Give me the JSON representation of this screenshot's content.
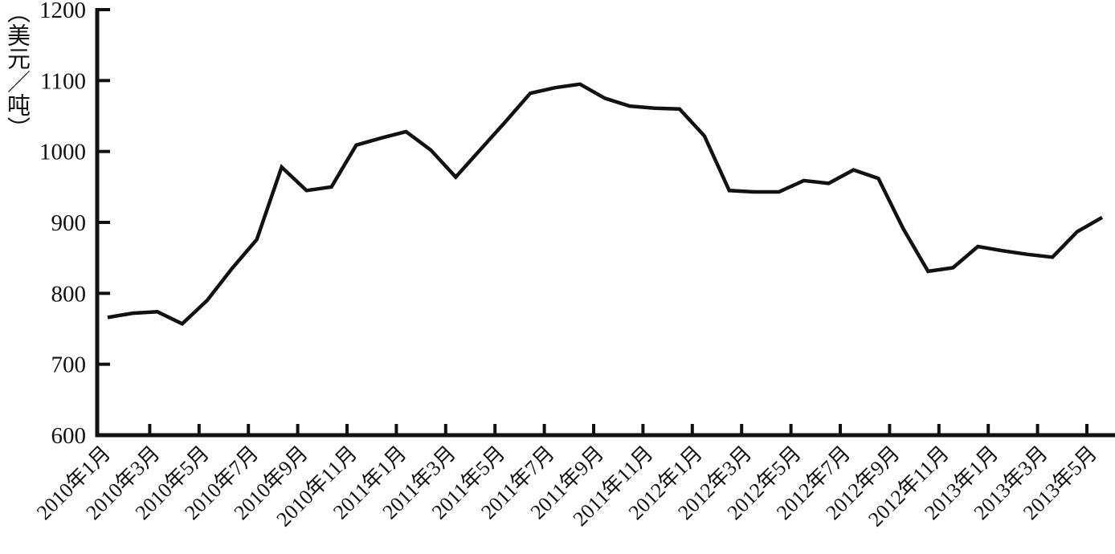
{
  "page": {
    "background": "#ffffff",
    "text_color": "#111111"
  },
  "chart_data": {
    "type": "line",
    "title": "",
    "xlabel": "",
    "ylabel": "（美元／吨）",
    "ylim": [
      600,
      1200
    ],
    "ytick_interval": 100,
    "yticks": [
      600,
      700,
      800,
      900,
      1000,
      1100,
      1200
    ],
    "grid": false,
    "legend_position": "none",
    "line_color": "#111111",
    "x_tick_every": 2,
    "x_tick_labels": [
      "2010年1月",
      "2010年3月",
      "2010年5月",
      "2010年7月",
      "2010年9月",
      "2010年11月",
      "2011年1月",
      "2011年3月",
      "2011年5月",
      "2011年7月",
      "2011年9月",
      "2011年11月",
      "2012年1月",
      "2012年3月",
      "2012年5月",
      "2012年7月",
      "2012年9月",
      "2012年11月",
      "2013年1月",
      "2013年3月",
      "2013年5月"
    ],
    "categories": [
      "2010年1月",
      "2010年2月",
      "2010年3月",
      "2010年4月",
      "2010年5月",
      "2010年6月",
      "2010年7月",
      "2010年8月",
      "2010年9月",
      "2010年10月",
      "2010年11月",
      "2010年12月",
      "2011年1月",
      "2011年2月",
      "2011年3月",
      "2011年4月",
      "2011年5月",
      "2011年6月",
      "2011年7月",
      "2011年8月",
      "2011年9月",
      "2011年10月",
      "2011年11月",
      "2011年12月",
      "2012年1月",
      "2012年2月",
      "2012年3月",
      "2012年4月",
      "2012年5月",
      "2012年6月",
      "2012年7月",
      "2012年8月",
      "2012年9月",
      "2012年10月",
      "2012年11月",
      "2012年12月",
      "2013年1月",
      "2013年2月",
      "2013年3月",
      "2013年4月",
      "2013年5月"
    ],
    "values": [
      766,
      772,
      774,
      757,
      790,
      835,
      876,
      978,
      945,
      950,
      1009,
      1019,
      1028,
      1002,
      964,
      1003,
      1042,
      1082,
      1090,
      1095,
      1075,
      1064,
      1061,
      1060,
      1022,
      945,
      943,
      943,
      959,
      955,
      974,
      962,
      891,
      831,
      836,
      866,
      860,
      855,
      851,
      887,
      907
    ]
  }
}
